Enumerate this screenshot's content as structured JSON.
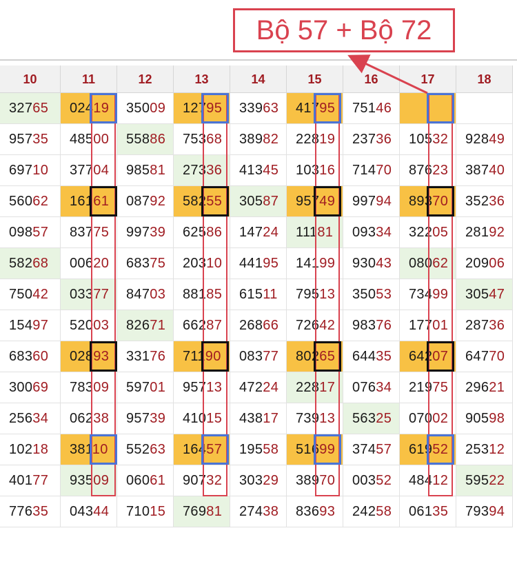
{
  "badge": {
    "text": "Bộ 57 + Bộ 72"
  },
  "columns": [
    "10",
    "11",
    "12",
    "13",
    "14",
    "15",
    "16",
    "17",
    "18"
  ],
  "rows": [
    [
      "32765",
      "02419",
      "35009",
      "12795",
      "33963",
      "41795",
      "75146",
      "",
      ""
    ],
    [
      "95735",
      "48500",
      "55886",
      "75368",
      "38982",
      "22819",
      "23736",
      "10532",
      "92849"
    ],
    [
      "69710",
      "37704",
      "98581",
      "27336",
      "41345",
      "10316",
      "71470",
      "87623",
      "38740"
    ],
    [
      "56062",
      "16161",
      "08792",
      "58255",
      "30587",
      "95749",
      "99794",
      "89370",
      "35236"
    ],
    [
      "09857",
      "83775",
      "99739",
      "62586",
      "14724",
      "11181",
      "09334",
      "32205",
      "28192"
    ],
    [
      "58268",
      "00620",
      "68375",
      "20310",
      "44195",
      "14199",
      "93043",
      "08062",
      "20906"
    ],
    [
      "75042",
      "03377",
      "84703",
      "88185",
      "61511",
      "79513",
      "35053",
      "73499",
      "30547"
    ],
    [
      "15497",
      "52003",
      "82671",
      "66287",
      "26866",
      "72642",
      "98376",
      "17701",
      "28736"
    ],
    [
      "68360",
      "02893",
      "33176",
      "71190",
      "08377",
      "80265",
      "64435",
      "64207",
      "64770"
    ],
    [
      "30069",
      "78309",
      "59701",
      "95713",
      "47224",
      "22817",
      "07634",
      "21975",
      "29621"
    ],
    [
      "25634",
      "06238",
      "95739",
      "41015",
      "43817",
      "73913",
      "56325",
      "07002",
      "90598"
    ],
    [
      "10218",
      "38110",
      "55263",
      "16457",
      "19558",
      "51699",
      "37457",
      "61952",
      "25312"
    ],
    [
      "40177",
      "93509",
      "06061",
      "90732",
      "30329",
      "38970",
      "00352",
      "48412",
      "59522"
    ],
    [
      "77635",
      "04344",
      "71015",
      "76981",
      "27438",
      "83693",
      "24258",
      "06135",
      "79394"
    ]
  ],
  "highlight_colors": {
    "yellow": "#f8c144",
    "green": "#e8f4e2",
    "red_frame": "#d9424f",
    "blue_box": "#4a74d6",
    "black_box": "#111111"
  },
  "yellow_cells": [
    [
      0,
      1
    ],
    [
      0,
      3
    ],
    [
      0,
      5
    ],
    [
      0,
      7
    ],
    [
      3,
      1
    ],
    [
      3,
      3
    ],
    [
      3,
      5
    ],
    [
      3,
      7
    ],
    [
      8,
      1
    ],
    [
      8,
      3
    ],
    [
      8,
      5
    ],
    [
      8,
      7
    ],
    [
      11,
      1
    ],
    [
      11,
      3
    ],
    [
      11,
      5
    ],
    [
      11,
      7
    ]
  ],
  "green_cells": [
    [
      0,
      0
    ],
    [
      1,
      2
    ],
    [
      2,
      3
    ],
    [
      3,
      4
    ],
    [
      4,
      5
    ],
    [
      5,
      0
    ],
    [
      5,
      7
    ],
    [
      6,
      1
    ],
    [
      6,
      8
    ],
    [
      7,
      2
    ],
    [
      9,
      5
    ],
    [
      10,
      6
    ],
    [
      12,
      1
    ],
    [
      12,
      8
    ],
    [
      13,
      3
    ]
  ],
  "framed_columns": [
    1,
    3,
    5,
    7
  ],
  "blue_boxed_rows": [
    0,
    11
  ],
  "black_boxed_rows": [
    3,
    8
  ]
}
